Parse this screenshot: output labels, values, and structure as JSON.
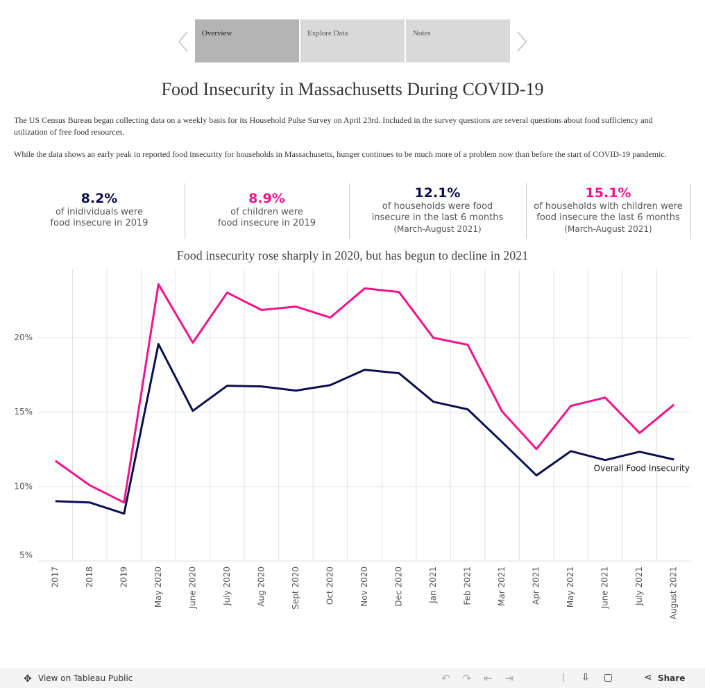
{
  "tabs": [
    "Overview",
    "Explore Data",
    "Notes"
  ],
  "header": {
    "title": "Food Insecurity in Massachusetts During COVID-19",
    "paragraphs": [
      "The US Census Bureau began collecting data on a weekly basis for its Household Pulse Survey on April 23rd. Included in the survey questions are several questions about food sufficiency and utilization of free food resources.",
      "While the data shows an early peak in reported food insecurity for households in Massachusetts, hunger continues to be much more of a problem now than before the start of COVID-19 pandemic."
    ]
  },
  "kpis": [
    {
      "value": "8.2%",
      "color": "#0b0f4d",
      "lines": [
        "of inidividuals were",
        "food insecure in 2019"
      ]
    },
    {
      "value": "8.9%",
      "color": "#f0148c",
      "lines": [
        "of children were",
        "food insecure in 2019"
      ]
    },
    {
      "value": "12.1%",
      "color": "#0b0f4d",
      "lines": [
        "of households were food",
        "insecure in the last 6 months",
        "(March-August 2021)"
      ]
    },
    {
      "value": "15.1%",
      "color": "#f0148c",
      "lines": [
        "of households with children were",
        "food insecure the last 6 months",
        "(March-August 2021)"
      ]
    }
  ],
  "chart_data": {
    "type": "line",
    "title": "Food insecurity rose sharply in 2020, but has begun to decline in 2021",
    "categories": [
      "2017",
      "2018",
      "2019",
      "May 2020",
      "June 2020",
      "July 2020",
      "Aug 2020",
      "Sept 2020",
      "Oct 2020",
      "Nov 2020",
      "Dec 2020",
      "Jan 2021",
      "Feb 2021",
      "Mar 2021",
      "Apr 2021",
      "May 2021",
      "June 2021",
      "July 2021",
      "August 2021"
    ],
    "series": [
      {
        "name": "Overall Food Insecurity",
        "color": "#0b0f4d",
        "values": [
          9.02,
          8.93,
          8.18,
          19.58,
          15.09,
          16.78,
          16.73,
          16.45,
          16.82,
          17.85,
          17.62,
          15.7,
          15.19,
          12.99,
          10.75,
          12.38,
          11.78,
          12.34,
          11.82
        ]
      },
      {
        "color": "#f0148c",
        "values": [
          11.73,
          10.09,
          8.93,
          23.6,
          19.67,
          23.04,
          21.87,
          22.1,
          21.36,
          23.32,
          23.08,
          20.0,
          19.53,
          15.05,
          12.52,
          15.42,
          15.98,
          13.6,
          15.51
        ]
      }
    ],
    "ylim": [
      5,
      24.6
    ],
    "yticks": [
      {
        "value": 5,
        "label": "5%"
      },
      {
        "value": 10,
        "label": "10%"
      },
      {
        "value": 15,
        "label": "15%"
      },
      {
        "value": 20,
        "label": "20%"
      }
    ],
    "grid": true
  },
  "toolbar": {
    "view": "View on Tableau Public",
    "share": "Share"
  }
}
